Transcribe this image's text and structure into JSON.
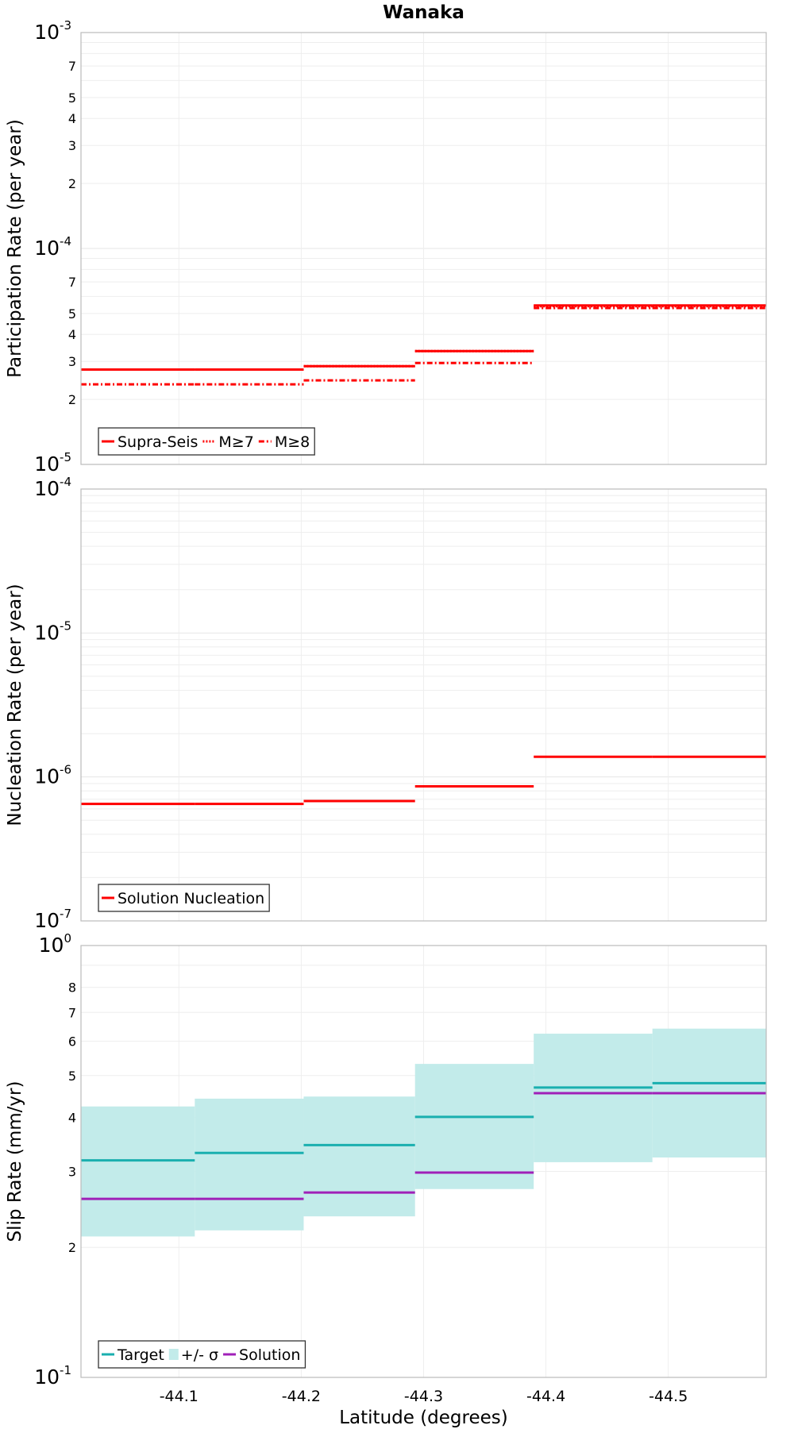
{
  "chart_data": [
    {
      "type": "line",
      "title": "Wanaka",
      "xlabel": "",
      "ylabel": "Participation Rate (per year)",
      "yscale": "log",
      "ylim": [
        1e-05,
        0.001
      ],
      "xlim": [
        -44.02,
        -44.58
      ],
      "grid": true,
      "legend_placement": "bottom-left",
      "y_tick_labels": [
        {
          "value": 0.001,
          "base": "10",
          "exp": "-3"
        },
        {
          "value": 0.0007,
          "label": "7"
        },
        {
          "value": 0.0005,
          "label": "5"
        },
        {
          "value": 0.0004,
          "label": "4"
        },
        {
          "value": 0.0003,
          "label": "3"
        },
        {
          "value": 0.0002,
          "label": "2"
        },
        {
          "value": 0.0001,
          "base": "10",
          "exp": "-4"
        },
        {
          "value": 7e-05,
          "label": "7"
        },
        {
          "value": 5e-05,
          "label": "5"
        },
        {
          "value": 4e-05,
          "label": "4"
        },
        {
          "value": 3e-05,
          "label": "3"
        },
        {
          "value": 2e-05,
          "label": "2"
        },
        {
          "value": 1e-05,
          "base": "10",
          "exp": "-5"
        }
      ],
      "series": [
        {
          "name": "Supra-Seis",
          "color": "#ff0000",
          "dash": "solid",
          "segments": [
            {
              "x0": -44.02,
              "x1": -44.113,
              "y": 2.75e-05
            },
            {
              "x0": -44.113,
              "x1": -44.202,
              "y": 2.75e-05
            },
            {
              "x0": -44.202,
              "x1": -44.293,
              "y": 2.85e-05
            },
            {
              "x0": -44.293,
              "x1": -44.39,
              "y": 3.35e-05
            },
            {
              "x0": -44.39,
              "x1": -44.487,
              "y": 5.45e-05
            },
            {
              "x0": -44.487,
              "x1": -44.58,
              "y": 5.45e-05
            }
          ]
        },
        {
          "name": "M≥7",
          "color": "#ff0000",
          "dash": "dotted",
          "segments": [
            {
              "x0": -44.02,
              "x1": -44.113,
              "y": 2.75e-05
            },
            {
              "x0": -44.113,
              "x1": -44.202,
              "y": 2.75e-05
            },
            {
              "x0": -44.202,
              "x1": -44.293,
              "y": 2.85e-05
            },
            {
              "x0": -44.293,
              "x1": -44.39,
              "y": 3.35e-05
            },
            {
              "x0": -44.39,
              "x1": -44.487,
              "y": 5.4e-05
            },
            {
              "x0": -44.487,
              "x1": -44.58,
              "y": 5.4e-05
            }
          ]
        },
        {
          "name": "M≥8",
          "color": "#ff0000",
          "dash": "dashdot",
          "segments": [
            {
              "x0": -44.02,
              "x1": -44.113,
              "y": 2.35e-05
            },
            {
              "x0": -44.113,
              "x1": -44.202,
              "y": 2.35e-05
            },
            {
              "x0": -44.202,
              "x1": -44.293,
              "y": 2.45e-05
            },
            {
              "x0": -44.293,
              "x1": -44.39,
              "y": 2.95e-05
            },
            {
              "x0": -44.39,
              "x1": -44.487,
              "y": 5.3e-05
            },
            {
              "x0": -44.487,
              "x1": -44.58,
              "y": 5.3e-05
            }
          ]
        }
      ]
    },
    {
      "type": "line",
      "title": "",
      "xlabel": "",
      "ylabel": "Nucleation Rate (per year)",
      "yscale": "log",
      "ylim": [
        1e-07,
        0.0001
      ],
      "xlim": [
        -44.02,
        -44.58
      ],
      "grid": true,
      "legend_placement": "bottom-left",
      "y_tick_labels": [
        {
          "value": 0.0001,
          "base": "10",
          "exp": "-4"
        },
        {
          "value": 1e-05,
          "base": "10",
          "exp": "-5"
        },
        {
          "value": 1e-06,
          "base": "10",
          "exp": "-6"
        },
        {
          "value": 1e-07,
          "base": "10",
          "exp": "-7"
        }
      ],
      "series": [
        {
          "name": "Solution Nucleation",
          "color": "#ff0000",
          "dash": "solid",
          "segments": [
            {
              "x0": -44.02,
              "x1": -44.113,
              "y": 6.5e-07
            },
            {
              "x0": -44.113,
              "x1": -44.202,
              "y": 6.5e-07
            },
            {
              "x0": -44.202,
              "x1": -44.293,
              "y": 6.8e-07
            },
            {
              "x0": -44.293,
              "x1": -44.39,
              "y": 8.6e-07
            },
            {
              "x0": -44.39,
              "x1": -44.487,
              "y": 1.38e-06
            },
            {
              "x0": -44.487,
              "x1": -44.58,
              "y": 1.38e-06
            }
          ]
        }
      ]
    },
    {
      "type": "line",
      "title": "",
      "xlabel": "Latitude (degrees)",
      "ylabel": "Slip Rate (mm/yr)",
      "yscale": "log",
      "ylim": [
        0.1,
        1
      ],
      "xlim": [
        -44.02,
        -44.58
      ],
      "grid": true,
      "legend_placement": "bottom-left",
      "x_tick_labels": [
        {
          "value": -44.1,
          "label": "-44.1"
        },
        {
          "value": -44.2,
          "label": "-44.2"
        },
        {
          "value": -44.3,
          "label": "-44.3"
        },
        {
          "value": -44.4,
          "label": "-44.4"
        },
        {
          "value": -44.5,
          "label": "-44.5"
        }
      ],
      "y_tick_labels": [
        {
          "value": 1,
          "base": "10",
          "exp": "0"
        },
        {
          "value": 0.8,
          "label": "8"
        },
        {
          "value": 0.7,
          "label": "7"
        },
        {
          "value": 0.6,
          "label": "6"
        },
        {
          "value": 0.5,
          "label": "5"
        },
        {
          "value": 0.4,
          "label": "4"
        },
        {
          "value": 0.3,
          "label": "3"
        },
        {
          "value": 0.2,
          "label": "2"
        },
        {
          "value": 0.1,
          "base": "10",
          "exp": "-1"
        }
      ],
      "band": {
        "name": "+/- σ",
        "color": "#c2ebea",
        "segments": [
          {
            "x0": -44.02,
            "x1": -44.113,
            "lo": 0.212,
            "hi": 0.424
          },
          {
            "x0": -44.113,
            "x1": -44.202,
            "lo": 0.219,
            "hi": 0.442
          },
          {
            "x0": -44.202,
            "x1": -44.293,
            "lo": 0.236,
            "hi": 0.447
          },
          {
            "x0": -44.293,
            "x1": -44.39,
            "lo": 0.273,
            "hi": 0.532
          },
          {
            "x0": -44.39,
            "x1": -44.487,
            "lo": 0.315,
            "hi": 0.625
          },
          {
            "x0": -44.487,
            "x1": -44.58,
            "lo": 0.323,
            "hi": 0.642
          }
        ]
      },
      "series": [
        {
          "name": "Target",
          "color": "#1aafaf",
          "dash": "solid",
          "segments": [
            {
              "x0": -44.02,
              "x1": -44.113,
              "y": 0.318
            },
            {
              "x0": -44.113,
              "x1": -44.202,
              "y": 0.331
            },
            {
              "x0": -44.202,
              "x1": -44.293,
              "y": 0.345
            },
            {
              "x0": -44.293,
              "x1": -44.39,
              "y": 0.401
            },
            {
              "x0": -44.39,
              "x1": -44.487,
              "y": 0.469
            },
            {
              "x0": -44.487,
              "x1": -44.58,
              "y": 0.48
            }
          ]
        },
        {
          "name": "Solution",
          "color": "#a020b8",
          "dash": "solid",
          "segments": [
            {
              "x0": -44.02,
              "x1": -44.113,
              "y": 0.259
            },
            {
              "x0": -44.113,
              "x1": -44.202,
              "y": 0.259
            },
            {
              "x0": -44.202,
              "x1": -44.293,
              "y": 0.268
            },
            {
              "x0": -44.293,
              "x1": -44.39,
              "y": 0.298
            },
            {
              "x0": -44.39,
              "x1": -44.487,
              "y": 0.455
            },
            {
              "x0": -44.487,
              "x1": -44.58,
              "y": 0.455
            }
          ]
        }
      ]
    }
  ]
}
